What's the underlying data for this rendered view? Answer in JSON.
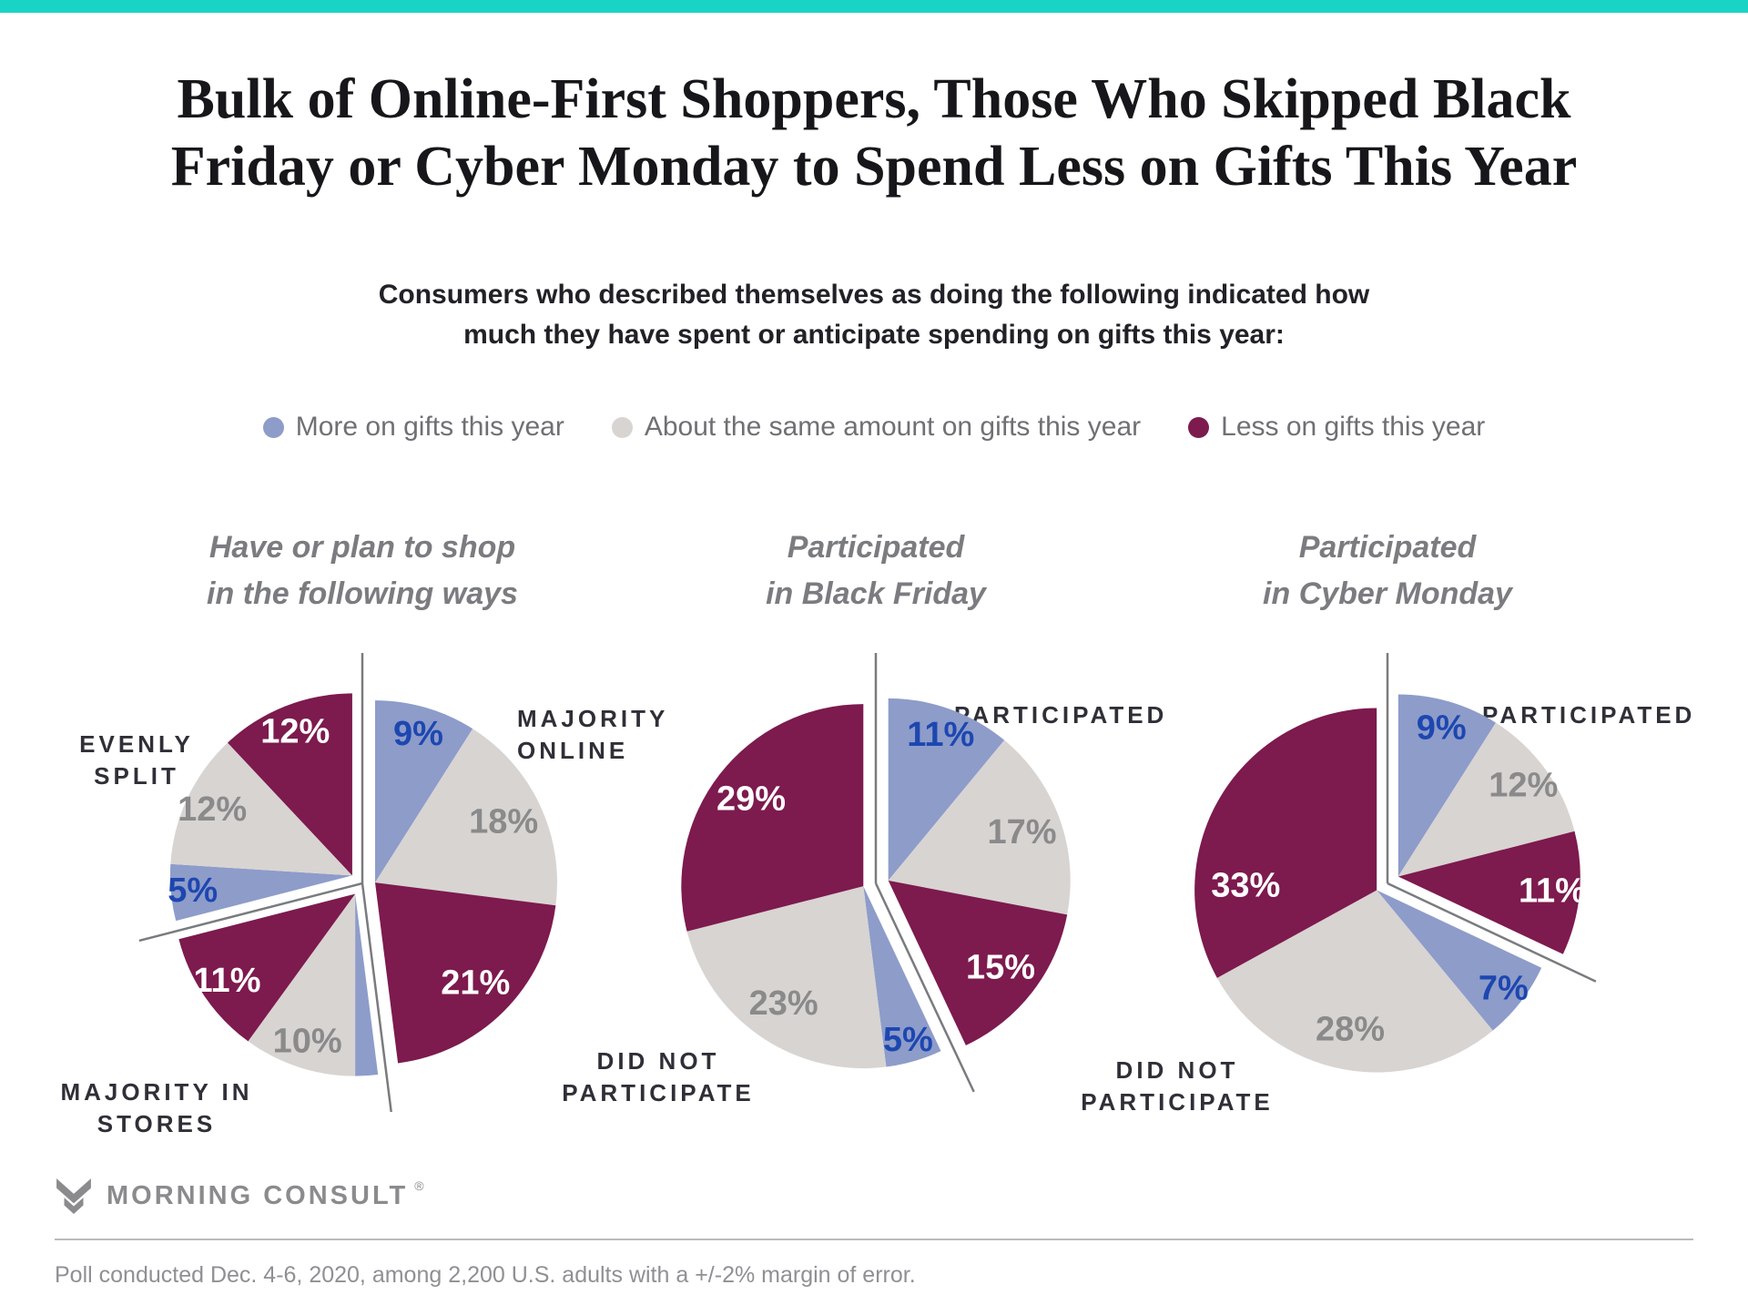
{
  "page": {
    "top_bar_color": "#19d3c5",
    "title_lines": [
      "Bulk of Online-First Shoppers, Those Who Skipped Black",
      "Friday or Cyber Monday to Spend Less on Gifts This Year"
    ],
    "subtitle_lines": [
      "Consumers who described themselves as doing the following indicated how",
      "much they have spent or anticipate spending on gifts this year:"
    ]
  },
  "legend": {
    "items": [
      {
        "id": "more",
        "label": "More on gifts this year",
        "color": "#8e9cca"
      },
      {
        "id": "same",
        "label": "About the same amount on gifts this year",
        "color": "#d8d4d2"
      },
      {
        "id": "less",
        "label": "Less on gifts this year",
        "color": "#7d1a4e"
      }
    ]
  },
  "chart_data": [
    {
      "type": "pie",
      "title": "Have or plan to shop in the following ways",
      "title_lines": [
        "Have or plan to shop",
        "in the following ways"
      ],
      "unit": "%",
      "legend_position": "top",
      "groups": [
        {
          "label": "MAJORITY ONLINE",
          "slices": [
            {
              "series": "more",
              "value": 9
            },
            {
              "series": "same",
              "value": 18
            },
            {
              "series": "less",
              "value": 21
            }
          ]
        },
        {
          "label": "MAJORITY IN STORES",
          "slices": [
            {
              "series": "more",
              "value": 2,
              "show_label": false
            },
            {
              "series": "same",
              "value": 10
            },
            {
              "series": "less",
              "value": 11
            }
          ]
        },
        {
          "label": "EVENLY SPLIT",
          "slices": [
            {
              "series": "more",
              "value": 5
            },
            {
              "series": "same",
              "value": 12
            },
            {
              "series": "less",
              "value": 12
            }
          ]
        }
      ]
    },
    {
      "type": "pie",
      "title": "Participated in Black Friday",
      "title_lines": [
        "Participated",
        "in Black Friday"
      ],
      "unit": "%",
      "legend_position": "top",
      "groups": [
        {
          "label": "PARTICIPATED",
          "slices": [
            {
              "series": "more",
              "value": 11
            },
            {
              "series": "same",
              "value": 17
            },
            {
              "series": "less",
              "value": 15
            }
          ]
        },
        {
          "label": "DID NOT PARTICIPATE",
          "slices": [
            {
              "series": "more",
              "value": 5
            },
            {
              "series": "same",
              "value": 23
            },
            {
              "series": "less",
              "value": 29
            }
          ]
        }
      ]
    },
    {
      "type": "pie",
      "title": "Participated in Cyber Monday",
      "title_lines": [
        "Participated",
        "in Cyber Monday"
      ],
      "unit": "%",
      "legend_position": "top",
      "groups": [
        {
          "label": "PARTICIPATED",
          "slices": [
            {
              "series": "more",
              "value": 9
            },
            {
              "series": "same",
              "value": 12
            },
            {
              "series": "less",
              "value": 11
            }
          ]
        },
        {
          "label": "DID NOT PARTICIPATE",
          "slices": [
            {
              "series": "more",
              "value": 7
            },
            {
              "series": "same",
              "value": 28
            },
            {
              "series": "less",
              "value": 33
            }
          ]
        }
      ]
    }
  ],
  "slice_label_colors": {
    "more": "#1d47b0",
    "same": "#8a8a8b",
    "less": "#ffffff"
  },
  "footer": {
    "brand": "MORNING CONSULT",
    "reg": "®",
    "note": "Poll conducted Dec. 4-6, 2020, among 2,200 U.S. adults with a +/-2% margin of error."
  }
}
